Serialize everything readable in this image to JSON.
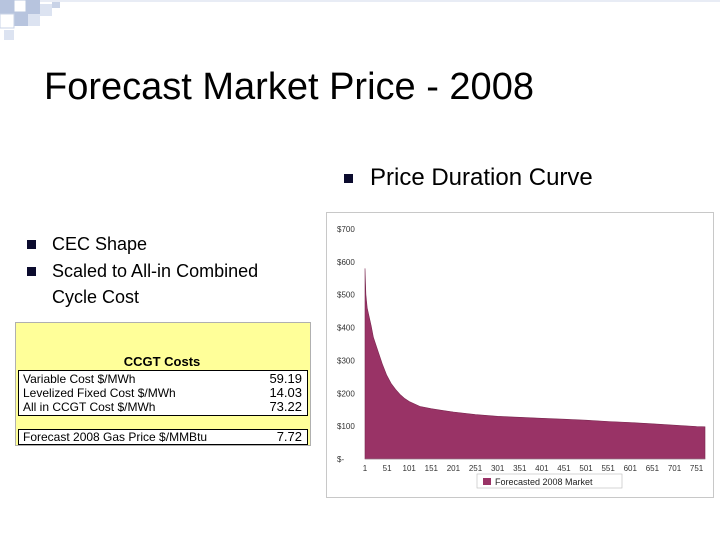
{
  "slide": {
    "title": "Forecast Market Price - 2008",
    "bullets": [
      "CEC Shape",
      "Scaled to All-in Combined Cycle Cost"
    ],
    "right_bullet": "Price Duration Curve"
  },
  "ccgt_table": {
    "header": "CCGT Costs",
    "rows": [
      {
        "label": "Variable Cost $/MWh",
        "value": "59.19"
      },
      {
        "label": "Levelized Fixed Cost $/MWh",
        "value": "14.03"
      },
      {
        "label": "All in CCGT Cost $/MWh",
        "value": "73.22"
      }
    ],
    "gas_row": {
      "label": "Forecast 2008 Gas Price $/MMBtu",
      "value": "7.72"
    }
  },
  "colors": {
    "area": "#993366",
    "bullet": "#0b0b2e",
    "table_bg": "#ffff99"
  },
  "chart_data": {
    "type": "area",
    "title": "",
    "xlabel": "",
    "ylabel": "",
    "x_ticks": [
      "1",
      "51",
      "101",
      "151",
      "201",
      "251",
      "301",
      "351",
      "401",
      "451",
      "501",
      "551",
      "601",
      "651",
      "701",
      "751"
    ],
    "y_ticks": [
      "$700",
      "$600",
      "$500",
      "$400",
      "$300",
      "$200",
      "$100",
      "$-"
    ],
    "ylim": [
      0,
      700
    ],
    "xlim": [
      1,
      770
    ],
    "legend": {
      "position": "bottom",
      "entries": [
        "Forecasted 2008 Market"
      ]
    },
    "series": [
      {
        "name": "Forecasted 2008 Market",
        "x": [
          1,
          3,
          6,
          10,
          15,
          20,
          30,
          40,
          50,
          60,
          70,
          80,
          90,
          101,
          125,
          151,
          176,
          201,
          251,
          301,
          351,
          401,
          451,
          501,
          551,
          601,
          651,
          701,
          751,
          770
        ],
        "values": [
          580,
          500,
          460,
          435,
          405,
          370,
          330,
          290,
          255,
          230,
          212,
          197,
          185,
          175,
          160,
          153,
          148,
          143,
          135,
          130,
          127,
          124,
          121,
          118,
          114,
          111,
          107,
          103,
          99,
          98
        ]
      }
    ],
    "grid": false
  }
}
